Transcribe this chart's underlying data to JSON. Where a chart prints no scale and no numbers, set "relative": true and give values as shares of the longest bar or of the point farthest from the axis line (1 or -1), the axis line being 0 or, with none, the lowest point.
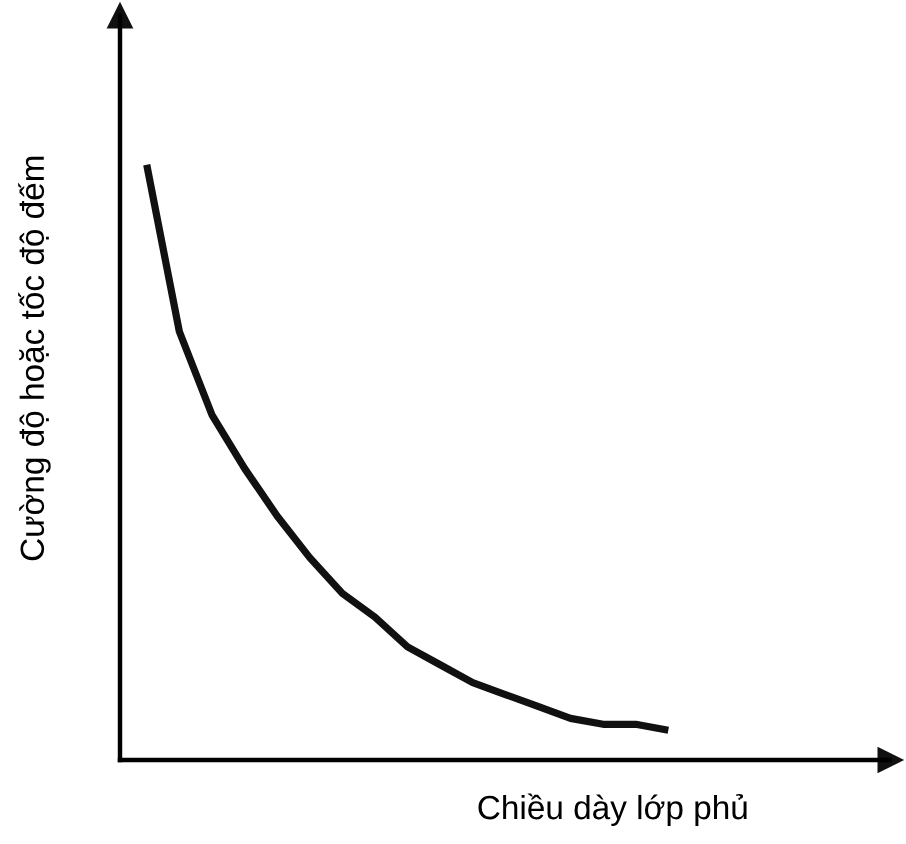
{
  "chart_data": {
    "type": "line",
    "relative": true,
    "xlabel": "Chiều dày lớp phủ",
    "ylabel": "Cường độ hoặc tốc độ đếm",
    "categories": [
      null,
      null,
      null,
      null,
      null,
      null,
      null,
      null,
      null,
      null,
      null,
      null,
      null,
      null,
      null,
      null,
      null
    ],
    "series": [
      {
        "color": "#111111",
        "values": [
          1,
          0.72,
          0.58,
          0.49,
          0.41,
          0.34,
          0.28,
          0.24,
          0.19,
          0.16,
          0.13,
          0.11,
          0.09,
          0.07,
          0.06,
          0.06,
          0.05
        ]
      }
    ],
    "marker": "none",
    "line_style": "solid",
    "grid": false,
    "legend": false
  }
}
